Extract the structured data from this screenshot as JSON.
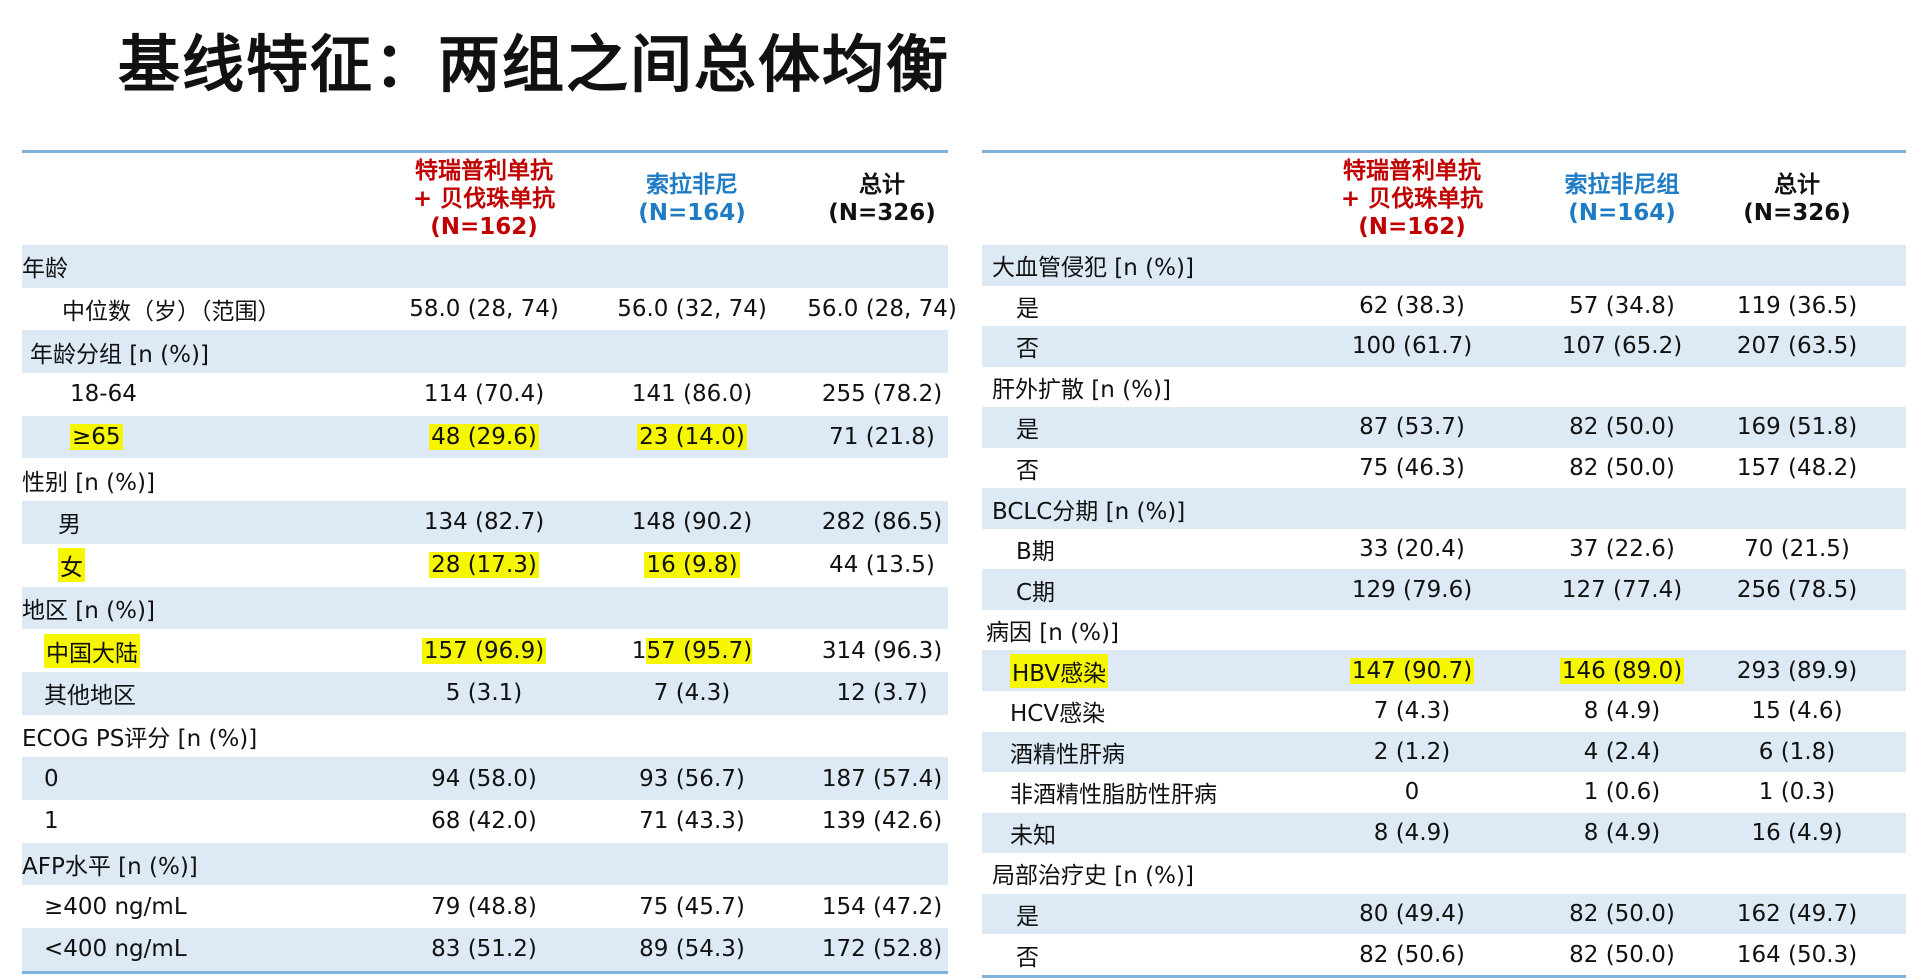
{
  "title": "基线特征：两组之间总体均衡",
  "left": {
    "headers": [
      {
        "lines": [
          "特瑞普利单抗",
          "+ 贝伐珠单抗",
          "(N=162)"
        ],
        "color": "red"
      },
      {
        "lines": [
          "索拉非尼",
          "(N=164)"
        ],
        "color": "blue"
      },
      {
        "lines": [
          "总计",
          "(N=326)"
        ],
        "color": "blk"
      }
    ],
    "rows": [
      {
        "label": "年龄",
        "indent": 0,
        "vals": [
          "",
          "",
          ""
        ],
        "shade": true
      },
      {
        "label": "中位数（岁）（范围）",
        "indent": 40,
        "vals": [
          "58.0 (28, 74)",
          "56.0 (32, 74)",
          "56.0 (28, 74)"
        ],
        "shade": false
      },
      {
        "label": "年龄分组 [n (%)]",
        "indent": 8,
        "vals": [
          "",
          "",
          ""
        ],
        "shade": true
      },
      {
        "label": "18-64",
        "indent": 48,
        "vals": [
          "114 (70.4)",
          "141 (86.0)",
          "255 (78.2)"
        ],
        "shade": false
      },
      {
        "label": "≥65",
        "indent": 48,
        "vals": [
          "48 (29.6)",
          "23 (14.0)",
          "71 (21.8)"
        ],
        "shade": true,
        "hl": [
          true,
          true,
          true,
          false
        ]
      },
      {
        "label": "性别 [n (%)]",
        "indent": 0,
        "vals": [
          "",
          "",
          ""
        ],
        "shade": false
      },
      {
        "label": "男",
        "indent": 36,
        "vals": [
          "134 (82.7)",
          "148 (90.2)",
          "282 (86.5)"
        ],
        "shade": true
      },
      {
        "label": "女",
        "indent": 36,
        "vals": [
          "28 (17.3)",
          "16 (9.8)",
          "44 (13.5)"
        ],
        "shade": false,
        "hl": [
          true,
          true,
          true,
          false
        ]
      },
      {
        "label": "地区 [n (%)]",
        "indent": 0,
        "vals": [
          "",
          "",
          ""
        ],
        "shade": true
      },
      {
        "label": "中国大陆",
        "indent": 22,
        "vals": [
          "157 (96.9)",
          "157 (95.7)",
          "314 (96.3)"
        ],
        "shade": false,
        "hl": [
          true,
          true,
          "partial",
          false
        ]
      },
      {
        "label": "其他地区",
        "indent": 22,
        "vals": [
          "5 (3.1)",
          "7 (4.3)",
          "12 (3.7)"
        ],
        "shade": true
      },
      {
        "label": "ECOG PS评分 [n (%)]",
        "indent": 0,
        "vals": [
          "",
          "",
          ""
        ],
        "shade": false
      },
      {
        "label": "0",
        "indent": 22,
        "vals": [
          "94 (58.0)",
          "93 (56.7)",
          "187 (57.4)"
        ],
        "shade": true
      },
      {
        "label": "1",
        "indent": 22,
        "vals": [
          "68 (42.0)",
          "71 (43.3)",
          "139 (42.6)"
        ],
        "shade": false
      },
      {
        "label": "AFP水平 [n (%)]",
        "indent": 0,
        "vals": [
          "",
          "",
          ""
        ],
        "shade": true
      },
      {
        "label": "≥400 ng/mL",
        "indent": 22,
        "vals": [
          "79 (48.8)",
          "75 (45.7)",
          "154 (47.2)"
        ],
        "shade": false
      },
      {
        "label": "<400 ng/mL",
        "indent": 22,
        "vals": [
          "83 (51.2)",
          "89 (54.3)",
          "172 (52.8)"
        ],
        "shade": true
      }
    ]
  },
  "right": {
    "headers": [
      {
        "lines": [
          "特瑞普利单抗",
          "+ 贝伐珠单抗",
          "(N=162)"
        ],
        "color": "red"
      },
      {
        "lines": [
          "索拉非尼组",
          "(N=164)"
        ],
        "color": "blue"
      },
      {
        "lines": [
          "总计",
          "(N=326)"
        ],
        "color": "blk"
      }
    ],
    "rows": [
      {
        "label": "大血管侵犯 [n (%)]",
        "indent": 10,
        "vals": [
          "",
          "",
          ""
        ],
        "shade": true
      },
      {
        "label": "是",
        "indent": 34,
        "vals": [
          "62 (38.3)",
          "57 (34.8)",
          "119 (36.5)"
        ],
        "shade": false
      },
      {
        "label": "否",
        "indent": 34,
        "vals": [
          "100 (61.7)",
          "107 (65.2)",
          "207 (63.5)"
        ],
        "shade": true
      },
      {
        "label": "肝外扩散 [n (%)]",
        "indent": 10,
        "vals": [
          "",
          "",
          ""
        ],
        "shade": false
      },
      {
        "label": "是",
        "indent": 34,
        "vals": [
          "87 (53.7)",
          "82 (50.0)",
          "169 (51.8)"
        ],
        "shade": true
      },
      {
        "label": "否",
        "indent": 34,
        "vals": [
          "75 (46.3)",
          "82 (50.0)",
          "157 (48.2)"
        ],
        "shade": false
      },
      {
        "label": "BCLC分期 [n (%)]",
        "indent": 10,
        "vals": [
          "",
          "",
          ""
        ],
        "shade": true
      },
      {
        "label": "B期",
        "indent": 34,
        "vals": [
          "33 (20.4)",
          "37 (22.6)",
          "70 (21.5)"
        ],
        "shade": false
      },
      {
        "label": "C期",
        "indent": 34,
        "vals": [
          "129 (79.6)",
          "127 (77.4)",
          "256 (78.5)"
        ],
        "shade": true
      },
      {
        "label": "病因 [n (%)]",
        "indent": 4,
        "vals": [
          "",
          "",
          ""
        ],
        "shade": false
      },
      {
        "label": "HBV感染",
        "indent": 28,
        "vals": [
          "147 (90.7)",
          "146 (89.0)",
          "293 (89.9)"
        ],
        "shade": true,
        "hl": [
          true,
          true,
          true,
          false
        ]
      },
      {
        "label": "HCV感染",
        "indent": 28,
        "vals": [
          "7 (4.3)",
          "8 (4.9)",
          "15 (4.6)"
        ],
        "shade": false
      },
      {
        "label": "酒精性肝病",
        "indent": 28,
        "vals": [
          "2 (1.2)",
          "4 (2.4)",
          "6 (1.8)"
        ],
        "shade": true
      },
      {
        "label": "非酒精性脂肪性肝病",
        "indent": 28,
        "vals": [
          "0",
          "1 (0.6)",
          "1 (0.3)"
        ],
        "shade": false
      },
      {
        "label": "未知",
        "indent": 28,
        "vals": [
          "8 (4.9)",
          "8 (4.9)",
          "16 (4.9)"
        ],
        "shade": true
      },
      {
        "label": "局部治疗史 [n (%)]",
        "indent": 10,
        "vals": [
          "",
          "",
          ""
        ],
        "shade": false
      },
      {
        "label": "是",
        "indent": 34,
        "vals": [
          "80 (49.4)",
          "82 (50.0)",
          "162 (49.7)"
        ],
        "shade": true
      },
      {
        "label": "否",
        "indent": 34,
        "vals": [
          "82 (50.6)",
          "82 (50.0)",
          "164 (50.3)"
        ],
        "shade": false
      }
    ]
  },
  "colors": {
    "red": "#c00000",
    "blue": "#1f7bc4",
    "shade": "#dde9f5",
    "highlight": "#f6f600",
    "rule": "#7fb2dd"
  }
}
